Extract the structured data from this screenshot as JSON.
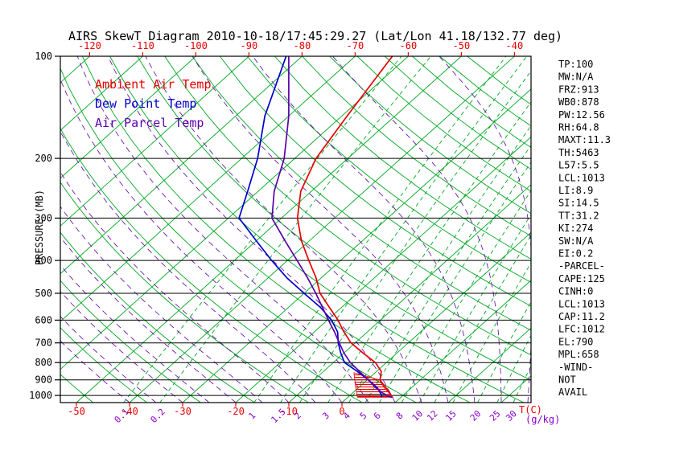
{
  "title": "AIRS SkewT Diagram 2010-10-18/17:45:29.27 (Lat/Lon 41.18/132.77 deg)",
  "colors": {
    "ambient": "#e60000",
    "dew_point": "#0000cd",
    "parcel": "#5a00aa",
    "grid_green": "#00a822",
    "moist_adiabat": "#5a00aa",
    "mixing_label": "#8800cc",
    "axis_black": "#000000"
  },
  "legend": [
    {
      "label": "Ambient Air Temp",
      "color_key": "ambient"
    },
    {
      "label": "Dew Point Temp",
      "color_key": "dew_point"
    },
    {
      "label": "Air Parcel Temp",
      "color_key": "parcel"
    }
  ],
  "axes": {
    "pressure_label": "PRESSURE (MB)",
    "pressure_ticks": [
      100,
      200,
      300,
      400,
      500,
      600,
      700,
      800,
      900,
      1000
    ],
    "top_temp_ticks": [
      -120,
      -110,
      -100,
      -90,
      -80,
      -70,
      -60,
      -50,
      -40
    ],
    "bottom_temp_ticks": [
      -50,
      -40,
      -30,
      -20,
      -10,
      0
    ],
    "temp_unit_label": "T(C)",
    "mixing_ratio_unit_label": "(g/kg)"
  },
  "stats_panel": [
    "TP:100",
    "MW:N/A",
    "FRZ:913",
    "WB0:878",
    "PW:12.56",
    "RH:64.8",
    "MAXT:11.3",
    "TH:5463",
    "L57:5.5",
    "LCL:1013",
    "LI:8.9",
    "SI:14.5",
    "TT:31.2",
    "KI:274",
    "SW:N/A",
    "EI:0.2",
    "-PARCEL-",
    "CAPE:125",
    "CINH:0",
    "LCL:1013",
    "CAP:11.2",
    "LFC:1012",
    "EL:790",
    "MPL:658",
    "-WIND-",
    "NOT",
    "AVAIL"
  ],
  "chart_data": {
    "type": "line",
    "title": "AIRS SkewT Diagram 2010-10-18/17:45:29.27 (Lat/Lon 41.18/132.77 deg)",
    "xlabel": "T(C)",
    "ylabel": "PRESSURE (MB)",
    "y_scale": "log",
    "p_top": 100,
    "p_bottom": 1050,
    "grid": {
      "isotherms": {
        "start": -120,
        "end": 40,
        "step": 10
      },
      "dry_adiabats": {
        "start": -60,
        "end": 160,
        "step": 10
      },
      "moist_adiabats": {
        "start": -40,
        "end": 40,
        "step": 5
      },
      "mixing_ratios": [
        0.1,
        0.2,
        1,
        1.5,
        2,
        3,
        4,
        5,
        6,
        8,
        10,
        12,
        15,
        20,
        25,
        30
      ]
    },
    "series": [
      {
        "id": "ambient-temp",
        "name": "Ambient Air Temp",
        "color_key": "ambient",
        "points": [
          [
            100,
            -63
          ],
          [
            150,
            -59
          ],
          [
            200,
            -56
          ],
          [
            250,
            -52
          ],
          [
            300,
            -47
          ],
          [
            350,
            -41.5
          ],
          [
            400,
            -36
          ],
          [
            450,
            -31
          ],
          [
            500,
            -27
          ],
          [
            550,
            -22.3
          ],
          [
            600,
            -18
          ],
          [
            650,
            -14.4
          ],
          [
            700,
            -10.8
          ],
          [
            750,
            -6.4
          ],
          [
            800,
            -2.1
          ],
          [
            850,
            0.9
          ],
          [
            900,
            2.4
          ],
          [
            950,
            5.2
          ],
          [
            1000,
            7.8
          ],
          [
            1013,
            8.3
          ]
        ]
      },
      {
        "id": "dew-point",
        "name": "Dew Point Temp",
        "color_key": "dew_point",
        "points": [
          [
            100,
            -83
          ],
          [
            150,
            -74.5
          ],
          [
            200,
            -67
          ],
          [
            250,
            -62
          ],
          [
            300,
            -58
          ],
          [
            350,
            -50
          ],
          [
            400,
            -43
          ],
          [
            450,
            -36.5
          ],
          [
            500,
            -30
          ],
          [
            550,
            -24
          ],
          [
            600,
            -19.2
          ],
          [
            650,
            -15.6
          ],
          [
            700,
            -13.2
          ],
          [
            750,
            -10.6
          ],
          [
            800,
            -7.9
          ],
          [
            850,
            -3.6
          ],
          [
            900,
            0.2
          ],
          [
            950,
            3.6
          ],
          [
            1000,
            6.0
          ],
          [
            1013,
            6.4
          ]
        ]
      },
      {
        "id": "air-parcel",
        "name": "Air Parcel Temp",
        "color_key": "parcel",
        "points": [
          [
            100,
            -82.5
          ],
          [
            150,
            -70
          ],
          [
            200,
            -62
          ],
          [
            250,
            -57
          ],
          [
            300,
            -51.8
          ],
          [
            350,
            -44.6
          ],
          [
            400,
            -38.2
          ],
          [
            450,
            -32.6
          ],
          [
            500,
            -27.8
          ],
          [
            550,
            -23.6
          ],
          [
            600,
            -19.8
          ],
          [
            650,
            -16.2
          ],
          [
            700,
            -13
          ],
          [
            750,
            -10
          ],
          [
            800,
            -6.8
          ],
          [
            850,
            -3.2
          ],
          [
            900,
            0.2
          ],
          [
            950,
            3.3
          ],
          [
            1000,
            6.8
          ],
          [
            1013,
            8.3
          ]
        ]
      }
    ],
    "cape_hatch": {
      "polygon": [
        [
          1013,
          1.8
        ],
        [
          950,
          -0.5
        ],
        [
          857,
          -4.0
        ],
        [
          900,
          2.3
        ],
        [
          950,
          4.9
        ],
        [
          1000,
          7.8
        ],
        [
          1013,
          8.5
        ]
      ]
    }
  }
}
